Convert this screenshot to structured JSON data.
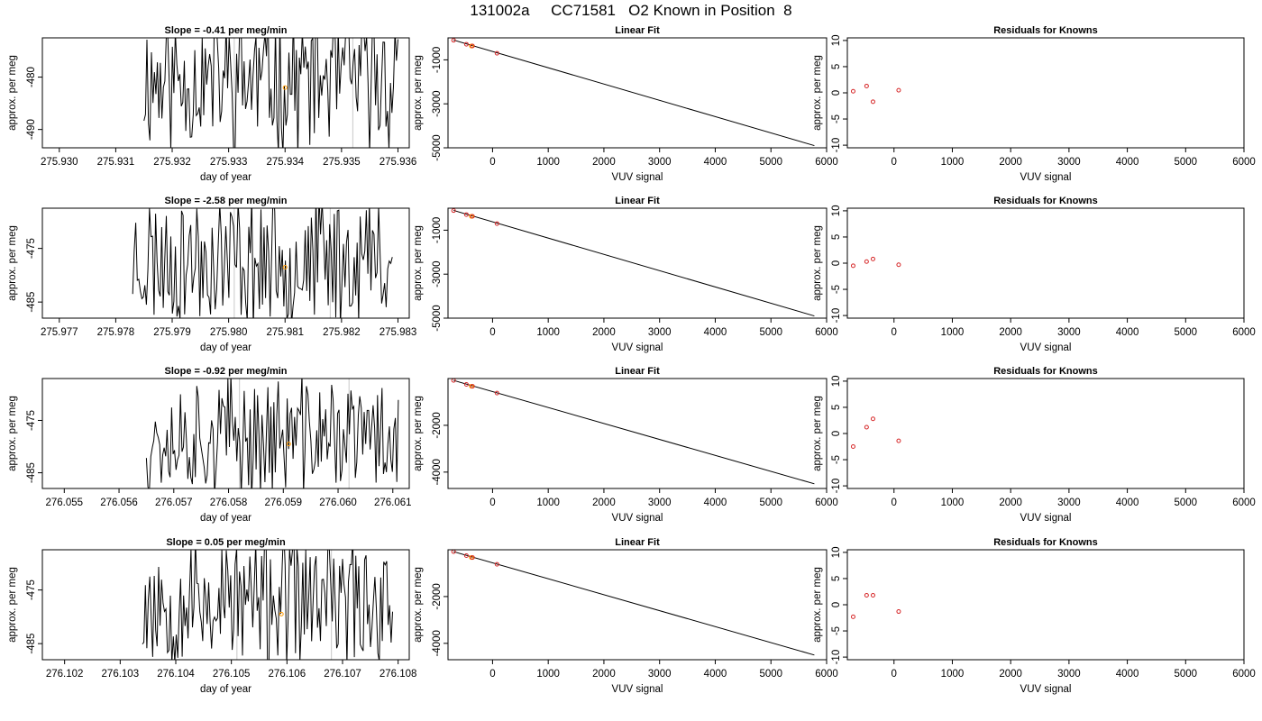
{
  "page": {
    "title": "131002a     CC71581   O2 Known in Position  8"
  },
  "colors": {
    "line": "#000000",
    "known_point": "#d62728",
    "sample_point": "#ff9900",
    "marker_line": "#c8c8c8"
  },
  "chart_data": [
    {
      "type": "line",
      "row": 1,
      "panel": "time",
      "title": "Slope =  -0.41  per meg/min",
      "xlabel": "day of year",
      "ylabel": "approx. per meg",
      "xlim": [
        275.9297,
        275.9362
      ],
      "ylim": [
        -493.5,
        -472.5
      ],
      "xticks": [
        "275.930",
        "275.931",
        "275.932",
        "275.933",
        "275.934",
        "275.935",
        "275.936"
      ],
      "yticks": [
        "-480",
        "-490"
      ],
      "markers": [
        275.9331,
        275.9352
      ],
      "series": [
        {
          "seed": 11,
          "x_start": 275.9315,
          "x_end": 275.936,
          "level": -480.5,
          "amp": 12
        }
      ],
      "highlight": [
        {
          "x": 275.934,
          "y": -482
        }
      ]
    },
    {
      "type": "scatter",
      "row": 1,
      "panel": "fit",
      "title": "Linear Fit",
      "xlabel": "VUV signal",
      "ylabel": "approx. per meg",
      "xlim": [
        -800,
        6000
      ],
      "ylim": [
        -5000,
        0
      ],
      "xticks": [
        "0",
        "1000",
        "2000",
        "3000",
        "4000",
        "5000",
        "6000"
      ],
      "yticks": [
        "-1000",
        "-3000",
        "-5000"
      ],
      "fit_line": {
        "x": [
          -700,
          5780
        ],
        "y": [
          -100,
          -4900
        ]
      },
      "points": [
        {
          "x": -700,
          "y": -110
        },
        {
          "x": -470,
          "y": -290
        },
        {
          "x": -360,
          "y": -370
        },
        {
          "x": 80,
          "y": -700
        }
      ],
      "sample_points": [
        {
          "x": -380,
          "y": -370
        }
      ]
    },
    {
      "type": "scatter",
      "row": 1,
      "panel": "residuals",
      "title": "Residuals for Knowns",
      "xlabel": "VUV signal",
      "ylabel": "approx. per meg",
      "xlim": [
        -800,
        6000
      ],
      "ylim": [
        -10.5,
        10.5
      ],
      "xticks": [
        "0",
        "1000",
        "2000",
        "3000",
        "4000",
        "5000",
        "6000"
      ],
      "yticks": [
        "10",
        "5",
        "0",
        "-5",
        "-10"
      ],
      "points": [
        {
          "x": -700,
          "y": 0.3
        },
        {
          "x": -470,
          "y": 1.3
        },
        {
          "x": -360,
          "y": -1.7
        },
        {
          "x": 80,
          "y": 0.5
        }
      ]
    },
    {
      "type": "line",
      "row": 2,
      "panel": "time",
      "title": "Slope =  -2.58  per meg/min",
      "xlabel": "day of year",
      "ylabel": "approx. per meg",
      "xlim": [
        275.9767,
        275.9832
      ],
      "ylim": [
        -488,
        -467.5
      ],
      "xticks": [
        "275.977",
        "275.978",
        "275.979",
        "275.980",
        "275.981",
        "275.982",
        "275.983"
      ],
      "yticks": [
        "-475",
        "-485"
      ],
      "markers": [
        275.9801,
        275.9818
      ],
      "series": [
        {
          "seed": 23,
          "x_start": 275.9783,
          "x_end": 275.9829,
          "level": -477,
          "amp": 11
        }
      ],
      "highlight": [
        {
          "x": 275.981,
          "y": -478.5
        }
      ]
    },
    {
      "type": "scatter",
      "row": 2,
      "panel": "fit",
      "title": "Linear Fit",
      "xlabel": "VUV signal",
      "ylabel": "approx. per meg",
      "xlim": [
        -800,
        6000
      ],
      "ylim": [
        -5000,
        0
      ],
      "xticks": [
        "0",
        "1000",
        "2000",
        "3000",
        "4000",
        "5000",
        "6000"
      ],
      "yticks": [
        "-1000",
        "-3000",
        "-5000"
      ],
      "fit_line": {
        "x": [
          -700,
          5780
        ],
        "y": [
          -100,
          -4900
        ]
      },
      "points": [
        {
          "x": -700,
          "y": -110
        },
        {
          "x": -470,
          "y": -290
        },
        {
          "x": -360,
          "y": -370
        },
        {
          "x": 80,
          "y": -700
        }
      ],
      "sample_points": [
        {
          "x": -380,
          "y": -370
        }
      ]
    },
    {
      "type": "scatter",
      "row": 2,
      "panel": "residuals",
      "title": "Residuals for Knowns",
      "xlabel": "VUV signal",
      "ylabel": "approx. per meg",
      "xlim": [
        -800,
        6000
      ],
      "ylim": [
        -10.5,
        10.5
      ],
      "xticks": [
        "0",
        "1000",
        "2000",
        "3000",
        "4000",
        "5000",
        "6000"
      ],
      "yticks": [
        "10",
        "5",
        "0",
        "-5",
        "-10"
      ],
      "points": [
        {
          "x": -700,
          "y": -0.5
        },
        {
          "x": -470,
          "y": 0.3
        },
        {
          "x": -360,
          "y": 0.8
        },
        {
          "x": 80,
          "y": -0.3
        }
      ]
    },
    {
      "type": "line",
      "row": 3,
      "panel": "time",
      "title": "Slope =  -0.92  per meg/min",
      "xlabel": "day of year",
      "ylabel": "approx. per meg",
      "xlim": [
        276.0546,
        276.0613
      ],
      "ylim": [
        -488,
        -467
      ],
      "xticks": [
        "276.055",
        "276.056",
        "276.057",
        "276.058",
        "276.059",
        "276.060",
        "276.061"
      ],
      "yticks": [
        "-475",
        "-485"
      ],
      "markers": [
        276.0582,
        276.0602
      ],
      "series": [
        {
          "seed": 37,
          "x_start": 276.0565,
          "x_end": 276.0611,
          "level": -478,
          "amp": 10
        }
      ],
      "highlight": [
        {
          "x": 276.0591,
          "y": -479.5
        }
      ]
    },
    {
      "type": "scatter",
      "row": 3,
      "panel": "fit",
      "title": "Linear Fit",
      "xlabel": "VUV signal",
      "ylabel": "approx. per meg",
      "xlim": [
        -800,
        6000
      ],
      "ylim": [
        -4700,
        0
      ],
      "xticks": [
        "0",
        "1000",
        "2000",
        "3000",
        "4000",
        "5000",
        "6000"
      ],
      "yticks": [
        "-2000",
        "-4000"
      ],
      "fit_line": {
        "x": [
          -700,
          5780
        ],
        "y": [
          -80,
          -4500
        ]
      },
      "points": [
        {
          "x": -700,
          "y": -80
        },
        {
          "x": -470,
          "y": -250
        },
        {
          "x": -360,
          "y": -330
        },
        {
          "x": 80,
          "y": -620
        }
      ],
      "sample_points": [
        {
          "x": -380,
          "y": -330
        }
      ]
    },
    {
      "type": "scatter",
      "row": 3,
      "panel": "residuals",
      "title": "Residuals for Knowns",
      "xlabel": "VUV signal",
      "ylabel": "approx. per meg",
      "xlim": [
        -800,
        6000
      ],
      "ylim": [
        -10.5,
        10.5
      ],
      "xticks": [
        "0",
        "1000",
        "2000",
        "3000",
        "4000",
        "5000",
        "6000"
      ],
      "yticks": [
        "10",
        "5",
        "0",
        "-5",
        "-10"
      ],
      "points": [
        {
          "x": -700,
          "y": -2.5
        },
        {
          "x": -470,
          "y": 1.2
        },
        {
          "x": -360,
          "y": 2.8
        },
        {
          "x": 80,
          "y": -1.4
        }
      ]
    },
    {
      "type": "line",
      "row": 4,
      "panel": "time",
      "title": "Slope =  0.05  per meg/min",
      "xlabel": "day of year",
      "ylabel": "approx. per meg",
      "xlim": [
        276.1016,
        276.1082
      ],
      "ylim": [
        -488,
        -467.5
      ],
      "xticks": [
        "276.102",
        "276.103",
        "276.104",
        "276.105",
        "276.106",
        "276.107",
        "276.108"
      ],
      "yticks": [
        "-475",
        "-485"
      ],
      "markers": [
        276.1051,
        276.1068
      ],
      "series": [
        {
          "seed": 53,
          "x_start": 276.1034,
          "x_end": 276.1079,
          "level": -477,
          "amp": 11
        }
      ],
      "highlight": [
        {
          "x": 276.1059,
          "y": -479.5
        }
      ]
    },
    {
      "type": "scatter",
      "row": 4,
      "panel": "fit",
      "title": "Linear Fit",
      "xlabel": "VUV signal",
      "ylabel": "approx. per meg",
      "xlim": [
        -800,
        6000
      ],
      "ylim": [
        -4700,
        0
      ],
      "xticks": [
        "0",
        "1000",
        "2000",
        "3000",
        "4000",
        "5000",
        "6000"
      ],
      "yticks": [
        "-2000",
        "-4000"
      ],
      "fit_line": {
        "x": [
          -700,
          5780
        ],
        "y": [
          -80,
          -4500
        ]
      },
      "points": [
        {
          "x": -700,
          "y": -80
        },
        {
          "x": -470,
          "y": -250
        },
        {
          "x": -360,
          "y": -330
        },
        {
          "x": 80,
          "y": -620
        }
      ],
      "sample_points": [
        {
          "x": -380,
          "y": -330
        }
      ]
    },
    {
      "type": "scatter",
      "row": 4,
      "panel": "residuals",
      "title": "Residuals for Knowns",
      "xlabel": "VUV signal",
      "ylabel": "approx. per meg",
      "xlim": [
        -800,
        6000
      ],
      "ylim": [
        -10.5,
        10.5
      ],
      "xticks": [
        "0",
        "1000",
        "2000",
        "3000",
        "4000",
        "5000",
        "6000"
      ],
      "yticks": [
        "10",
        "5",
        "0",
        "-5",
        "-10"
      ],
      "points": [
        {
          "x": -700,
          "y": -2.3
        },
        {
          "x": -470,
          "y": 1.8
        },
        {
          "x": -360,
          "y": 1.8
        },
        {
          "x": 80,
          "y": -1.3
        }
      ]
    }
  ]
}
